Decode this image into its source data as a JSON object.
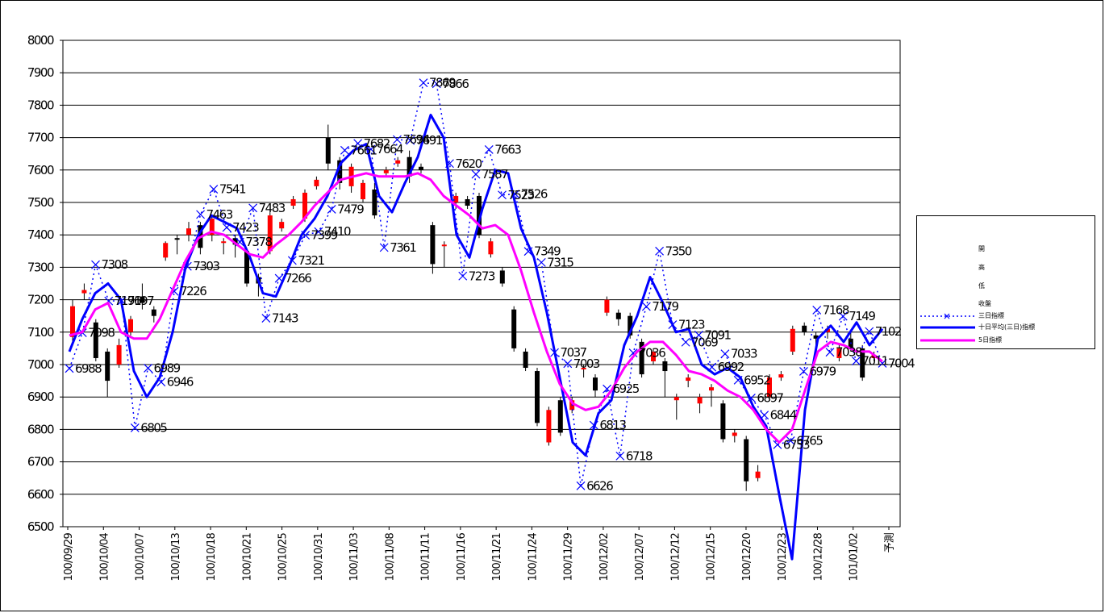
{
  "chart_data": {
    "type": "line",
    "ylim": [
      6500,
      8000
    ],
    "y_ticks": [
      "6500",
      "6600",
      "6700",
      "6800",
      "6900",
      "7000",
      "7100",
      "7200",
      "7300",
      "7400",
      "7500",
      "7600",
      "7700",
      "7800",
      "7900",
      "8000"
    ],
    "x_tick_labels": [
      "100/09/29",
      "100/10/04",
      "100/10/07",
      "100/10/13",
      "100/10/18",
      "100/10/21",
      "100/10/25",
      "100/10/31",
      "100/11/03",
      "100/11/08",
      "100/11/11",
      "100/11/16",
      "100/11/21",
      "100/11/24",
      "100/11/29",
      "100/12/02",
      "100/12/07",
      "100/12/12",
      "100/12/15",
      "100/12/20",
      "100/12/23",
      "100/12/28",
      "101/01/02",
      "予測"
    ],
    "grid": true,
    "legend_position": "right",
    "legend": [
      "開",
      "高",
      "低",
      "收盤",
      "三日指標",
      "十日平均(三日)指標",
      "5日指標"
    ],
    "candles": [
      {
        "o": 7085,
        "c": 7180,
        "h": 7200,
        "l": 7070
      },
      {
        "o": 7220,
        "c": 7230,
        "h": 7250,
        "l": 7200
      },
      {
        "o": 7130,
        "c": 7020,
        "h": 7140,
        "l": 7010
      },
      {
        "o": 7040,
        "c": 6950,
        "h": 7050,
        "l": 6900
      },
      {
        "o": 7000,
        "c": 7060,
        "h": 7080,
        "l": 6990
      },
      {
        "o": 7100,
        "c": 7140,
        "h": 7150,
        "l": 7090
      },
      {
        "o": 7210,
        "c": 7190,
        "h": 7250,
        "l": 7170
      },
      {
        "o": 7170,
        "c": 7150,
        "h": 7180,
        "l": 7130
      },
      {
        "o": 7330,
        "c": 7375,
        "h": 7380,
        "l": 7320
      },
      {
        "o": 7390,
        "c": 7385,
        "h": 7400,
        "l": 7340
      },
      {
        "o": 7400,
        "c": 7420,
        "h": 7440,
        "l": 7380
      },
      {
        "o": 7430,
        "c": 7360,
        "h": 7440,
        "l": 7340
      },
      {
        "o": 7400,
        "c": 7450,
        "h": 7460,
        "l": 7380
      },
      {
        "o": 7375,
        "c": 7380,
        "h": 7390,
        "l": 7340
      },
      {
        "o": 7390,
        "c": 7370,
        "h": 7400,
        "l": 7330
      },
      {
        "o": 7350,
        "c": 7250,
        "h": 7360,
        "l": 7240
      },
      {
        "o": 7270,
        "c": 7250,
        "h": 7280,
        "l": 7210
      },
      {
        "o": 7350,
        "c": 7460,
        "h": 7470,
        "l": 7340
      },
      {
        "o": 7420,
        "c": 7440,
        "h": 7450,
        "l": 7410
      },
      {
        "o": 7490,
        "c": 7510,
        "h": 7520,
        "l": 7480
      },
      {
        "o": 7450,
        "c": 7530,
        "h": 7540,
        "l": 7440
      },
      {
        "o": 7550,
        "c": 7570,
        "h": 7580,
        "l": 7540
      },
      {
        "o": 7700,
        "c": 7620,
        "h": 7740,
        "l": 7600
      },
      {
        "o": 7630,
        "c": 7560,
        "h": 7640,
        "l": 7540
      },
      {
        "o": 7550,
        "c": 7610,
        "h": 7620,
        "l": 7530
      },
      {
        "o": 7510,
        "c": 7560,
        "h": 7570,
        "l": 7500
      },
      {
        "o": 7540,
        "c": 7460,
        "h": 7560,
        "l": 7450
      },
      {
        "o": 7590,
        "c": 7600,
        "h": 7610,
        "l": 7580
      },
      {
        "o": 7620,
        "c": 7630,
        "h": 7640,
        "l": 7610
      },
      {
        "o": 7640,
        "c": 7580,
        "h": 7660,
        "l": 7560
      },
      {
        "o": 7610,
        "c": 7600,
        "h": 7620,
        "l": 7590
      },
      {
        "o": 7430,
        "c": 7310,
        "h": 7440,
        "l": 7280
      },
      {
        "o": 7370,
        "c": 7370,
        "h": 7380,
        "l": 7300
      },
      {
        "o": 7500,
        "c": 7520,
        "h": 7530,
        "l": 7480
      },
      {
        "o": 7510,
        "c": 7490,
        "h": 7520,
        "l": 7480
      },
      {
        "o": 7520,
        "c": 7400,
        "h": 7530,
        "l": 7390
      },
      {
        "o": 7340,
        "c": 7380,
        "h": 7390,
        "l": 7330
      },
      {
        "o": 7290,
        "c": 7250,
        "h": 7300,
        "l": 7240
      },
      {
        "o": 7170,
        "c": 7050,
        "h": 7180,
        "l": 7040
      },
      {
        "o": 7040,
        "c": 6990,
        "h": 7050,
        "l": 6980
      },
      {
        "o": 6980,
        "c": 6820,
        "h": 6990,
        "l": 6810
      },
      {
        "o": 6760,
        "c": 6860,
        "h": 6870,
        "l": 6750
      },
      {
        "o": 6890,
        "c": 6790,
        "h": 6900,
        "l": 6780
      },
      {
        "o": 6860,
        "c": 6890,
        "h": 6900,
        "l": 6850
      },
      {
        "o": 6990,
        "c": 6990,
        "h": 7000,
        "l": 6960
      },
      {
        "o": 6960,
        "c": 6920,
        "h": 6970,
        "l": 6900
      },
      {
        "o": 7160,
        "c": 7200,
        "h": 7210,
        "l": 7150
      },
      {
        "o": 7160,
        "c": 7140,
        "h": 7170,
        "l": 7120
      },
      {
        "o": 7150,
        "c": 7090,
        "h": 7160,
        "l": 7080
      },
      {
        "o": 7070,
        "c": 6970,
        "h": 7080,
        "l": 6960
      },
      {
        "o": 7010,
        "c": 7040,
        "h": 7050,
        "l": 7000
      },
      {
        "o": 7010,
        "c": 6980,
        "h": 7020,
        "l": 6900
      },
      {
        "o": 6890,
        "c": 6900,
        "h": 6910,
        "l": 6830
      },
      {
        "o": 6950,
        "c": 6960,
        "h": 6970,
        "l": 6930
      },
      {
        "o": 6880,
        "c": 6900,
        "h": 6910,
        "l": 6850
      },
      {
        "o": 6920,
        "c": 6930,
        "h": 6940,
        "l": 6870
      },
      {
        "o": 6880,
        "c": 6770,
        "h": 6890,
        "l": 6760
      },
      {
        "o": 6780,
        "c": 6790,
        "h": 6800,
        "l": 6760
      },
      {
        "o": 6770,
        "c": 6640,
        "h": 6780,
        "l": 6610
      },
      {
        "o": 6650,
        "c": 6670,
        "h": 6690,
        "l": 6640
      },
      {
        "o": 6900,
        "c": 6960,
        "h": 6970,
        "l": 6890
      },
      {
        "o": 6960,
        "c": 6970,
        "h": 6980,
        "l": 6950
      },
      {
        "o": 7040,
        "c": 7110,
        "h": 7120,
        "l": 7030
      },
      {
        "o": 7120,
        "c": 7100,
        "h": 7130,
        "l": 7090
      },
      {
        "o": 7090,
        "c": 7080,
        "h": 7100,
        "l": 7060
      },
      {
        "o": 7100,
        "c": 7110,
        "h": 7120,
        "l": 7080
      },
      {
        "o": 7020,
        "c": 7050,
        "h": 7060,
        "l": 7010
      },
      {
        "o": 7080,
        "c": 7050,
        "h": 7100,
        "l": 7040
      },
      {
        "o": 7050,
        "c": 6960,
        "h": 7060,
        "l": 6950
      },
      {
        "o": 7020,
        "c": 7030,
        "h": 7040,
        "l": 7010
      }
    ],
    "series": [
      {
        "name": "三日指標",
        "style": "dotted",
        "color": "#0000ff",
        "values": [
          6988,
          7098,
          7308,
          7196,
          7197,
          6805,
          6989,
          6946,
          7226,
          7303,
          7463,
          7541,
          7423,
          7378,
          7483,
          7143,
          7266,
          7321,
          7399,
          7410,
          7479,
          7661,
          7682,
          7664,
          7361,
          7694,
          7691,
          7869,
          7866,
          7620,
          7273,
          7587,
          7663,
          7523,
          7526,
          7349,
          7315,
          7037,
          7003,
          6626,
          6813,
          6925,
          6718,
          7036,
          7179,
          7350,
          7123,
          7069,
          7091,
          6992,
          7033,
          6952,
          6897,
          6844,
          6753,
          6765,
          6979,
          7168,
          7038,
          7149,
          7011,
          7102,
          7004
        ],
        "labels": [
          {
            "i": 0,
            "t": "6988"
          },
          {
            "i": 1,
            "t": "7098"
          },
          {
            "i": 2,
            "t": "7308"
          },
          {
            "i": 3,
            "t": "7196"
          },
          {
            "i": 4,
            "t": "7197"
          },
          {
            "i": 5,
            "t": "6805"
          },
          {
            "i": 6,
            "t": "6989"
          },
          {
            "i": 7,
            "t": "6946"
          },
          {
            "i": 8,
            "t": "7226"
          },
          {
            "i": 9,
            "t": "7303"
          },
          {
            "i": 10,
            "t": "7463"
          },
          {
            "i": 11,
            "t": "7541"
          },
          {
            "i": 12,
            "t": "7423"
          },
          {
            "i": 13,
            "t": "7378"
          },
          {
            "i": 14,
            "t": "7483"
          },
          {
            "i": 15,
            "t": "7143"
          },
          {
            "i": 16,
            "t": "7266"
          },
          {
            "i": 17,
            "t": "7321"
          },
          {
            "i": 18,
            "t": "7399"
          },
          {
            "i": 19,
            "t": "7410"
          },
          {
            "i": 20,
            "t": "7479"
          },
          {
            "i": 21,
            "t": "7661"
          },
          {
            "i": 22,
            "t": "7682"
          },
          {
            "i": 23,
            "t": "7664"
          },
          {
            "i": 24,
            "t": "7361"
          },
          {
            "i": 25,
            "t": "7694"
          },
          {
            "i": 26,
            "t": "7691"
          },
          {
            "i": 27,
            "t": "7869"
          },
          {
            "i": 28,
            "t": "7866"
          },
          {
            "i": 29,
            "t": "7620"
          },
          {
            "i": 30,
            "t": "7273"
          },
          {
            "i": 31,
            "t": "7587"
          },
          {
            "i": 32,
            "t": "7663"
          },
          {
            "i": 33,
            "t": "7523"
          },
          {
            "i": 34,
            "t": "7526"
          },
          {
            "i": 35,
            "t": "7349"
          },
          {
            "i": 36,
            "t": "7315"
          },
          {
            "i": 37,
            "t": "7037"
          },
          {
            "i": 38,
            "t": "7003"
          },
          {
            "i": 39,
            "t": "6626"
          },
          {
            "i": 40,
            "t": "6813"
          },
          {
            "i": 41,
            "t": "6925"
          },
          {
            "i": 42,
            "t": "6718"
          },
          {
            "i": 43,
            "t": "7036"
          },
          {
            "i": 44,
            "t": "7179"
          },
          {
            "i": 45,
            "t": "7350"
          },
          {
            "i": 46,
            "t": "7123"
          },
          {
            "i": 47,
            "t": "7069"
          },
          {
            "i": 48,
            "t": "7091"
          },
          {
            "i": 49,
            "t": "6992"
          },
          {
            "i": 50,
            "t": "7033"
          },
          {
            "i": 51,
            "t": "6952"
          },
          {
            "i": 52,
            "t": "6897"
          },
          {
            "i": 53,
            "t": "6844"
          },
          {
            "i": 54,
            "t": "6753"
          },
          {
            "i": 55,
            "t": "6765"
          },
          {
            "i": 56,
            "t": "6979"
          },
          {
            "i": 57,
            "t": "7168"
          },
          {
            "i": 58,
            "t": "7038"
          },
          {
            "i": 59,
            "t": "7149"
          },
          {
            "i": 60,
            "t": "7011"
          },
          {
            "i": 61,
            "t": "7102"
          },
          {
            "i": 62,
            "t": "7004"
          }
        ]
      },
      {
        "name": "十日平均(三日)指標",
        "style": "solid",
        "color": "#0000ff",
        "values": [
          7040,
          7140,
          7220,
          7250,
          7200,
          6980,
          6900,
          6960,
          7100,
          7300,
          7400,
          7460,
          7440,
          7420,
          7330,
          7220,
          7210,
          7300,
          7400,
          7450,
          7520,
          7620,
          7660,
          7680,
          7520,
          7470,
          7560,
          7640,
          7770,
          7700,
          7400,
          7330,
          7480,
          7600,
          7590,
          7420,
          7330,
          7160,
          6960,
          6760,
          6720,
          6850,
          6890,
          7060,
          7150,
          7270,
          7190,
          7100,
          7110,
          7000,
          6970,
          6990,
          6960,
          6870,
          6810,
          6600,
          6400,
          6860,
          7080,
          7120,
          7070,
          7130,
          7060,
          7110
        ]
      },
      {
        "name": "5日指標",
        "style": "solid",
        "color": "#ff00ff",
        "values": [
          7090,
          7100,
          7170,
          7190,
          7100,
          7080,
          7080,
          7140,
          7230,
          7320,
          7390,
          7410,
          7400,
          7370,
          7340,
          7330,
          7370,
          7400,
          7440,
          7490,
          7530,
          7570,
          7580,
          7590,
          7580,
          7580,
          7580,
          7590,
          7570,
          7520,
          7490,
          7460,
          7420,
          7430,
          7400,
          7290,
          7160,
          7040,
          6940,
          6880,
          6860,
          6870,
          6920,
          6990,
          7040,
          7070,
          7070,
          7030,
          6980,
          6970,
          6950,
          6920,
          6900,
          6860,
          6800,
          6760,
          6800,
          6920,
          7040,
          7070,
          7060,
          7040,
          7040,
          7010
        ]
      }
    ]
  }
}
